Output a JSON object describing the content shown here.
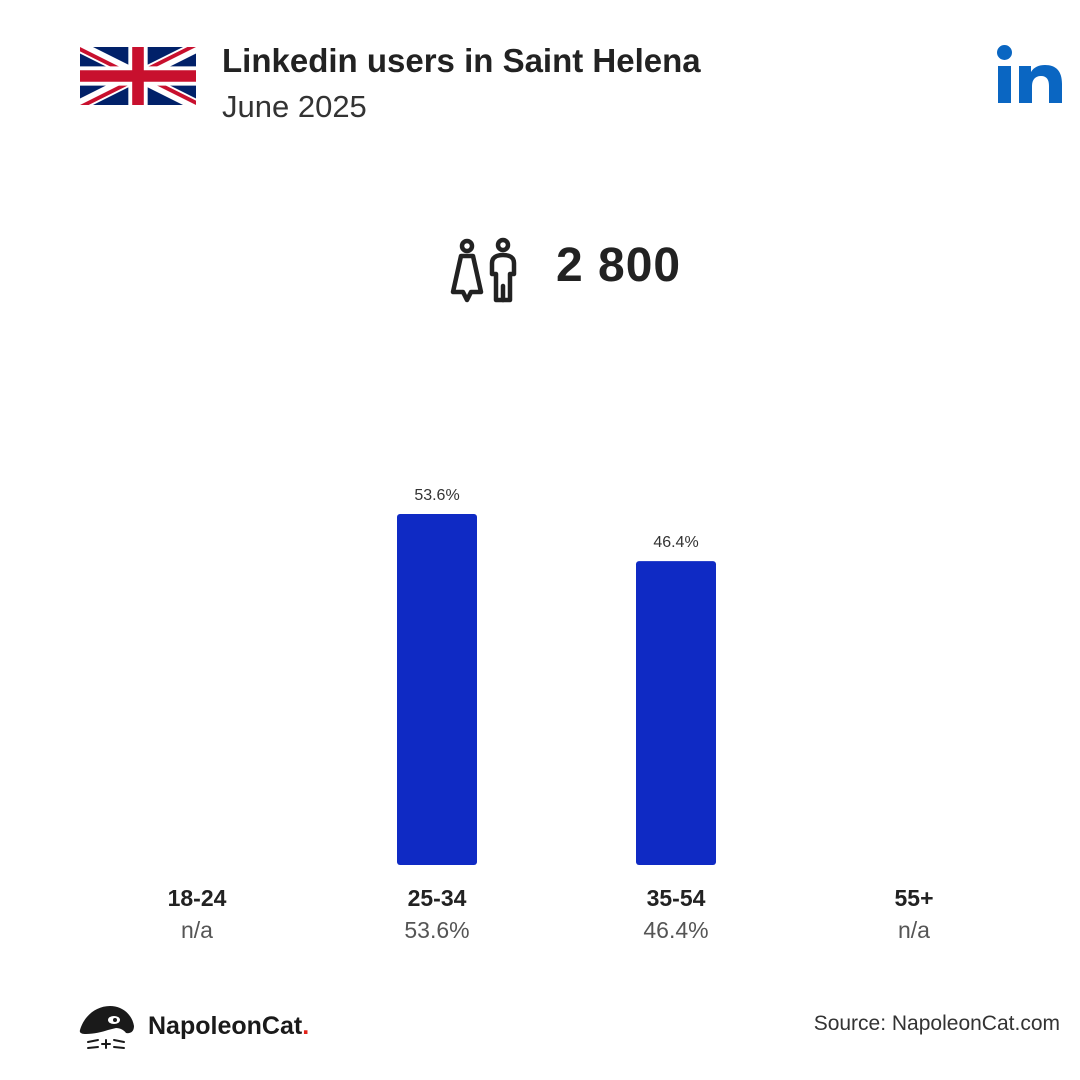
{
  "header": {
    "title": "Linkedin users in Saint Helena",
    "subtitle": "June 2025",
    "flag_icon": "uk-flag-icon",
    "platform_icon": "linkedin-logo-icon"
  },
  "summary": {
    "total_users": "2 800",
    "icon": "users-male-female-icon"
  },
  "chart_data": {
    "type": "bar",
    "categories": [
      "18-24",
      "25-34",
      "35-54",
      "55+"
    ],
    "values": [
      null,
      53.6,
      46.4,
      null
    ],
    "bar_labels": [
      "",
      "53.6%",
      "46.4%",
      ""
    ],
    "category_values": [
      "n/a",
      "53.6%",
      "46.4%",
      "n/a"
    ],
    "unit": "%",
    "ylim": [
      0,
      53.6
    ],
    "grid": false,
    "bar_color": "#0f2ac4"
  },
  "footer": {
    "brand_name": "NapoleonCat",
    "brand_dot": ".",
    "brand_icon": "napoleoncat-logo-icon",
    "source": "Source: NapoleonCat.com"
  },
  "colors": {
    "bar": "#0f2ac4",
    "linkedin": "#0a66c2",
    "brand_dot": "#e2231a"
  }
}
